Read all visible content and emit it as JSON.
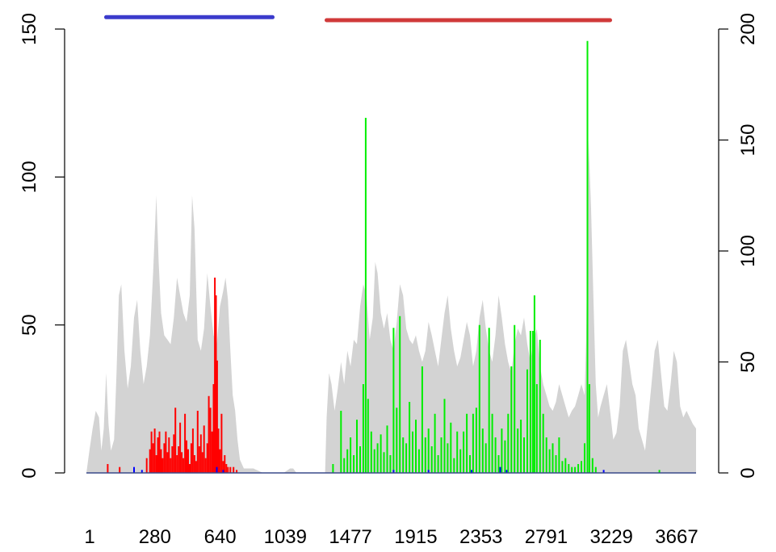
{
  "chart_data": {
    "type": "area",
    "title": "",
    "xlabel": "",
    "ylabel_left": "",
    "ylabel_right": "",
    "xlim": [
      1,
      3830
    ],
    "ylim_left": [
      0,
      150
    ],
    "ylim_right": [
      0,
      200
    ],
    "x_tick_labels": [
      "1",
      "280",
      "640",
      "1039",
      "1477",
      "1915",
      "2353",
      "2791",
      "3229",
      "3667"
    ],
    "y_left_ticks": [
      "0",
      "50",
      "100",
      "150"
    ],
    "y_right_ticks": [
      "0",
      "50",
      "100",
      "150",
      "200"
    ],
    "grid": false,
    "legend": "none",
    "colors": {
      "coverage": "#d3d3d3",
      "red_signal": "#ff0000",
      "green_signal": "#00ee00",
      "blue_signal": "#0000ff",
      "domain_blue": "#3b3bcc",
      "domain_red": "#d03a3a",
      "baseline": "#3a4a8a"
    },
    "domains": [
      {
        "start": 125,
        "end": 1170,
        "level": 154,
        "color": "#3b3bcc"
      },
      {
        "start": 1510,
        "end": 3290,
        "level": 153,
        "color": "#d03a3a"
      }
    ],
    "coverage": {
      "axis": "right",
      "points": [
        [
          1,
          0
        ],
        [
          20,
          10
        ],
        [
          40,
          20
        ],
        [
          60,
          28
        ],
        [
          80,
          25
        ],
        [
          95,
          10
        ],
        [
          110,
          20
        ],
        [
          125,
          45
        ],
        [
          140,
          22
        ],
        [
          155,
          10
        ],
        [
          175,
          15
        ],
        [
          190,
          45
        ],
        [
          205,
          80
        ],
        [
          220,
          85
        ],
        [
          240,
          55
        ],
        [
          260,
          38
        ],
        [
          280,
          48
        ],
        [
          300,
          70
        ],
        [
          320,
          78
        ],
        [
          340,
          55
        ],
        [
          360,
          40
        ],
        [
          380,
          48
        ],
        [
          400,
          62
        ],
        [
          420,
          90
        ],
        [
          440,
          125
        ],
        [
          455,
          95
        ],
        [
          470,
          72
        ],
        [
          490,
          62
        ],
        [
          510,
          60
        ],
        [
          530,
          58
        ],
        [
          550,
          70
        ],
        [
          570,
          88
        ],
        [
          590,
          80
        ],
        [
          610,
          72
        ],
        [
          630,
          68
        ],
        [
          650,
          80
        ],
        [
          665,
          125
        ],
        [
          680,
          110
        ],
        [
          700,
          60
        ],
        [
          720,
          55
        ],
        [
          740,
          65
        ],
        [
          760,
          90
        ],
        [
          780,
          75
        ],
        [
          800,
          62
        ],
        [
          820,
          58
        ],
        [
          840,
          75
        ],
        [
          860,
          82
        ],
        [
          875,
          88
        ],
        [
          890,
          78
        ],
        [
          905,
          55
        ],
        [
          920,
          35
        ],
        [
          935,
          28
        ],
        [
          950,
          15
        ],
        [
          965,
          6
        ],
        [
          990,
          2
        ],
        [
          1020,
          2
        ],
        [
          1050,
          2
        ],
        [
          1080,
          1
        ],
        [
          1110,
          0
        ],
        [
          1240,
          0
        ],
        [
          1280,
          2
        ],
        [
          1300,
          2
        ],
        [
          1320,
          0
        ],
        [
          1500,
          0
        ],
        [
          1510,
          25
        ],
        [
          1525,
          45
        ],
        [
          1540,
          40
        ],
        [
          1560,
          28
        ],
        [
          1580,
          38
        ],
        [
          1600,
          50
        ],
        [
          1620,
          40
        ],
        [
          1640,
          55
        ],
        [
          1660,
          48
        ],
        [
          1680,
          60
        ],
        [
          1700,
          58
        ],
        [
          1720,
          75
        ],
        [
          1740,
          85
        ],
        [
          1760,
          80
        ],
        [
          1780,
          60
        ],
        [
          1800,
          70
        ],
        [
          1815,
          95
        ],
        [
          1830,
          90
        ],
        [
          1850,
          72
        ],
        [
          1870,
          65
        ],
        [
          1890,
          72
        ],
        [
          1910,
          60
        ],
        [
          1930,
          55
        ],
        [
          1950,
          68
        ],
        [
          1970,
          85
        ],
        [
          1990,
          80
        ],
        [
          2010,
          65
        ],
        [
          2030,
          60
        ],
        [
          2050,
          58
        ],
        [
          2070,
          62
        ],
        [
          2090,
          55
        ],
        [
          2110,
          50
        ],
        [
          2130,
          55
        ],
        [
          2150,
          68
        ],
        [
          2170,
          62
        ],
        [
          2190,
          55
        ],
        [
          2210,
          48
        ],
        [
          2230,
          60
        ],
        [
          2250,
          72
        ],
        [
          2270,
          80
        ],
        [
          2290,
          65
        ],
        [
          2310,
          55
        ],
        [
          2330,
          48
        ],
        [
          2350,
          52
        ],
        [
          2370,
          60
        ],
        [
          2390,
          68
        ],
        [
          2410,
          62
        ],
        [
          2430,
          48
        ],
        [
          2450,
          55
        ],
        [
          2470,
          70
        ],
        [
          2490,
          78
        ],
        [
          2510,
          65
        ],
        [
          2530,
          55
        ],
        [
          2550,
          50
        ],
        [
          2570,
          62
        ],
        [
          2590,
          80
        ],
        [
          2610,
          70
        ],
        [
          2630,
          58
        ],
        [
          2650,
          50
        ],
        [
          2670,
          45
        ],
        [
          2690,
          58
        ],
        [
          2710,
          65
        ],
        [
          2730,
          62
        ],
        [
          2750,
          70
        ],
        [
          2770,
          58
        ],
        [
          2790,
          50
        ],
        [
          2810,
          60
        ],
        [
          2830,
          65
        ],
        [
          2850,
          48
        ],
        [
          2870,
          40
        ],
        [
          2890,
          35
        ],
        [
          2910,
          30
        ],
        [
          2930,
          28
        ],
        [
          2950,
          32
        ],
        [
          2970,
          40
        ],
        [
          2990,
          35
        ],
        [
          3010,
          30
        ],
        [
          3030,
          25
        ],
        [
          3050,
          28
        ],
        [
          3070,
          30
        ],
        [
          3090,
          35
        ],
        [
          3110,
          40
        ],
        [
          3130,
          35
        ],
        [
          3140,
          60
        ],
        [
          3155,
          150
        ],
        [
          3170,
          120
        ],
        [
          3185,
          80
        ],
        [
          3200,
          40
        ],
        [
          3215,
          25
        ],
        [
          3230,
          30
        ],
        [
          3250,
          35
        ],
        [
          3270,
          40
        ],
        [
          3290,
          28
        ],
        [
          3310,
          15
        ],
        [
          3330,
          18
        ],
        [
          3350,
          30
        ],
        [
          3370,
          55
        ],
        [
          3390,
          60
        ],
        [
          3410,
          50
        ],
        [
          3430,
          40
        ],
        [
          3450,
          35
        ],
        [
          3470,
          20
        ],
        [
          3490,
          15
        ],
        [
          3510,
          10
        ],
        [
          3530,
          25
        ],
        [
          3550,
          40
        ],
        [
          3570,
          55
        ],
        [
          3590,
          60
        ],
        [
          3610,
          45
        ],
        [
          3630,
          30
        ],
        [
          3650,
          28
        ],
        [
          3670,
          40
        ],
        [
          3690,
          55
        ],
        [
          3710,
          50
        ],
        [
          3730,
          30
        ],
        [
          3750,
          25
        ],
        [
          3770,
          28
        ],
        [
          3790,
          25
        ],
        [
          3810,
          22
        ],
        [
          3830,
          20
        ]
      ]
    },
    "series": [
      {
        "axis": "left",
        "color": "#ff0000",
        "values": [
          [
            135,
            3
          ],
          [
            210,
            2
          ],
          [
            380,
            5
          ],
          [
            400,
            8
          ],
          [
            410,
            14
          ],
          [
            420,
            10
          ],
          [
            430,
            15
          ],
          [
            440,
            6
          ],
          [
            450,
            12
          ],
          [
            460,
            14
          ],
          [
            470,
            8
          ],
          [
            480,
            5
          ],
          [
            490,
            10
          ],
          [
            500,
            14
          ],
          [
            510,
            7
          ],
          [
            520,
            12
          ],
          [
            530,
            5
          ],
          [
            540,
            9
          ],
          [
            550,
            13
          ],
          [
            560,
            22
          ],
          [
            570,
            6
          ],
          [
            580,
            9
          ],
          [
            590,
            17
          ],
          [
            600,
            7
          ],
          [
            610,
            5
          ],
          [
            620,
            20
          ],
          [
            630,
            11
          ],
          [
            640,
            8
          ],
          [
            650,
            3
          ],
          [
            660,
            10
          ],
          [
            670,
            15
          ],
          [
            680,
            6
          ],
          [
            690,
            4
          ],
          [
            700,
            21
          ],
          [
            710,
            9
          ],
          [
            720,
            13
          ],
          [
            730,
            7
          ],
          [
            740,
            16
          ],
          [
            750,
            5
          ],
          [
            760,
            10
          ],
          [
            770,
            26
          ],
          [
            780,
            22
          ],
          [
            790,
            14
          ],
          [
            800,
            30
          ],
          [
            808,
            66
          ],
          [
            815,
            60
          ],
          [
            822,
            38
          ],
          [
            830,
            15
          ],
          [
            840,
            8
          ],
          [
            850,
            20
          ],
          [
            860,
            4
          ],
          [
            870,
            6
          ],
          [
            880,
            3
          ],
          [
            890,
            2
          ],
          [
            905,
            2
          ],
          [
            925,
            2
          ],
          [
            945,
            1
          ]
        ]
      },
      {
        "axis": "left",
        "color": "#00ee00",
        "values": [
          [
            1550,
            3
          ],
          [
            1600,
            21
          ],
          [
            1620,
            5
          ],
          [
            1640,
            8
          ],
          [
            1660,
            12
          ],
          [
            1680,
            6
          ],
          [
            1700,
            18
          ],
          [
            1720,
            9
          ],
          [
            1740,
            30
          ],
          [
            1755,
            120
          ],
          [
            1770,
            25
          ],
          [
            1790,
            14
          ],
          [
            1810,
            8
          ],
          [
            1830,
            10
          ],
          [
            1850,
            13
          ],
          [
            1870,
            7
          ],
          [
            1890,
            16
          ],
          [
            1910,
            6
          ],
          [
            1930,
            49
          ],
          [
            1950,
            22
          ],
          [
            1970,
            53
          ],
          [
            1990,
            12
          ],
          [
            2010,
            10
          ],
          [
            2030,
            24
          ],
          [
            2050,
            14
          ],
          [
            2070,
            18
          ],
          [
            2090,
            8
          ],
          [
            2110,
            36
          ],
          [
            2130,
            12
          ],
          [
            2150,
            15
          ],
          [
            2170,
            9
          ],
          [
            2190,
            20
          ],
          [
            2210,
            6
          ],
          [
            2230,
            12
          ],
          [
            2250,
            25
          ],
          [
            2270,
            10
          ],
          [
            2290,
            17
          ],
          [
            2310,
            5
          ],
          [
            2330,
            14
          ],
          [
            2350,
            8
          ],
          [
            2370,
            14
          ],
          [
            2390,
            20
          ],
          [
            2410,
            6
          ],
          [
            2430,
            20
          ],
          [
            2450,
            22
          ],
          [
            2470,
            50
          ],
          [
            2490,
            15
          ],
          [
            2510,
            10
          ],
          [
            2530,
            49
          ],
          [
            2550,
            20
          ],
          [
            2570,
            12
          ],
          [
            2590,
            6
          ],
          [
            2610,
            15
          ],
          [
            2630,
            11
          ],
          [
            2650,
            20
          ],
          [
            2670,
            36
          ],
          [
            2690,
            50
          ],
          [
            2710,
            15
          ],
          [
            2730,
            18
          ],
          [
            2750,
            12
          ],
          [
            2770,
            35
          ],
          [
            2790,
            48
          ],
          [
            2805,
            48
          ],
          [
            2815,
            60
          ],
          [
            2830,
            30
          ],
          [
            2850,
            45
          ],
          [
            2870,
            20
          ],
          [
            2890,
            12
          ],
          [
            2910,
            8
          ],
          [
            2930,
            10
          ],
          [
            2950,
            6
          ],
          [
            2970,
            12
          ],
          [
            2990,
            4
          ],
          [
            3010,
            5
          ],
          [
            3030,
            3
          ],
          [
            3050,
            2
          ],
          [
            3070,
            2
          ],
          [
            3090,
            3
          ],
          [
            3110,
            4
          ],
          [
            3130,
            10
          ],
          [
            3148,
            146
          ],
          [
            3160,
            30
          ],
          [
            3180,
            5
          ],
          [
            3200,
            2
          ],
          [
            3600,
            1
          ]
        ]
      },
      {
        "axis": "left",
        "color": "#0000ff",
        "values": [
          [
            300,
            2
          ],
          [
            350,
            1
          ],
          [
            820,
            2
          ],
          [
            860,
            1
          ],
          [
            1930,
            1
          ],
          [
            2150,
            1
          ],
          [
            2420,
            1
          ],
          [
            2600,
            2
          ],
          [
            2640,
            1
          ],
          [
            3250,
            1
          ]
        ]
      }
    ]
  }
}
